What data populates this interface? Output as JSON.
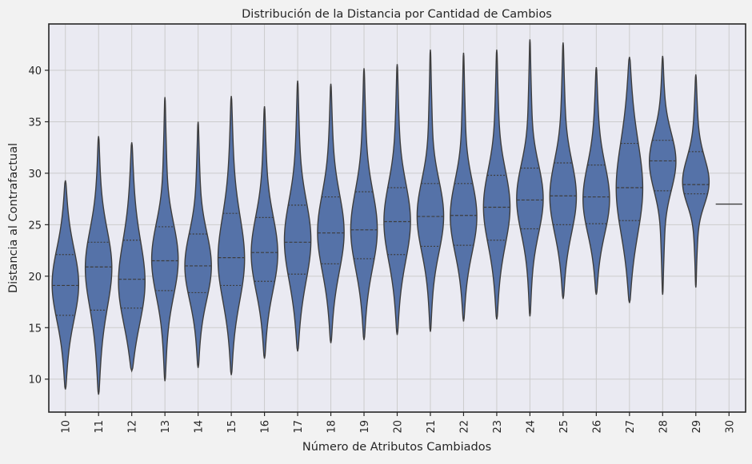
{
  "chart_data": {
    "type": "violin",
    "title": "Distribución de la Distancia por Cantidad de Cambios",
    "xlabel": "Número de Atributos Cambiados",
    "ylabel": "Distancia al Contrafactual",
    "ylim": [
      6.8,
      44.5
    ],
    "yticks": [
      10,
      15,
      20,
      25,
      30,
      35,
      40
    ],
    "grid": true,
    "inner": "quartile",
    "colors": {
      "violin": "#5572a8",
      "edge": "#3d3d3d",
      "grid": "#cccccc",
      "frame": "#262626",
      "background": "#eaeaf2"
    },
    "categories": [
      "10",
      "11",
      "12",
      "13",
      "14",
      "15",
      "16",
      "17",
      "18",
      "19",
      "20",
      "21",
      "22",
      "23",
      "24",
      "25",
      "26",
      "27",
      "28",
      "29",
      "30"
    ],
    "series": [
      {
        "category": "10",
        "min": 9.0,
        "q1": 16.2,
        "median": 19.1,
        "q3": 22.1,
        "max": 29.3,
        "mode": 19.5
      },
      {
        "category": "11",
        "min": 8.5,
        "q1": 16.7,
        "median": 20.9,
        "q3": 23.3,
        "max": 33.6,
        "mode": 21.0
      },
      {
        "category": "12",
        "min": 10.8,
        "q1": 16.9,
        "median": 19.7,
        "q3": 23.5,
        "max": 33.0,
        "mode": 18.0
      },
      {
        "category": "13",
        "min": 9.8,
        "q1": 18.6,
        "median": 21.5,
        "q3": 24.8,
        "max": 37.4,
        "mode": 21.5
      },
      {
        "category": "14",
        "min": 11.1,
        "q1": 18.4,
        "median": 21.0,
        "q3": 24.1,
        "max": 35.0,
        "mode": 20.5
      },
      {
        "category": "15",
        "min": 10.4,
        "q1": 19.1,
        "median": 21.8,
        "q3": 26.1,
        "max": 37.5,
        "mode": 20.5
      },
      {
        "category": "16",
        "min": 12.0,
        "q1": 19.5,
        "median": 22.3,
        "q3": 25.7,
        "max": 36.5,
        "mode": 21.5
      },
      {
        "category": "17",
        "min": 12.7,
        "q1": 20.2,
        "median": 23.3,
        "q3": 26.9,
        "max": 39.0,
        "mode": 23.5
      },
      {
        "category": "18",
        "min": 13.5,
        "q1": 21.2,
        "median": 24.2,
        "q3": 27.7,
        "max": 38.7,
        "mode": 24.0
      },
      {
        "category": "19",
        "min": 13.8,
        "q1": 21.7,
        "median": 24.5,
        "q3": 28.2,
        "max": 40.2,
        "mode": 24.0
      },
      {
        "category": "20",
        "min": 14.3,
        "q1": 22.1,
        "median": 25.3,
        "q3": 28.6,
        "max": 40.6,
        "mode": 25.0
      },
      {
        "category": "21",
        "min": 14.6,
        "q1": 22.9,
        "median": 25.8,
        "q3": 29.0,
        "max": 42.0,
        "mode": 25.5
      },
      {
        "category": "22",
        "min": 15.6,
        "q1": 23.0,
        "median": 25.9,
        "q3": 29.0,
        "max": 41.7,
        "mode": 25.0
      },
      {
        "category": "23",
        "min": 15.8,
        "q1": 23.5,
        "median": 26.7,
        "q3": 29.8,
        "max": 42.0,
        "mode": 26.5
      },
      {
        "category": "24",
        "min": 16.1,
        "q1": 24.6,
        "median": 27.4,
        "q3": 30.5,
        "max": 43.0,
        "mode": 27.5
      },
      {
        "category": "25",
        "min": 17.8,
        "q1": 25.0,
        "median": 27.8,
        "q3": 31.0,
        "max": 42.7,
        "mode": 27.0
      },
      {
        "category": "26",
        "min": 18.2,
        "q1": 25.1,
        "median": 27.7,
        "q3": 30.8,
        "max": 40.3,
        "mode": 26.5
      },
      {
        "category": "27",
        "min": 17.4,
        "q1": 25.4,
        "median": 28.6,
        "q3": 32.9,
        "max": 41.3,
        "mode": 28.0
      },
      {
        "category": "28",
        "min": 18.2,
        "q1": 28.3,
        "median": 31.2,
        "q3": 33.2,
        "max": 41.4,
        "mode": 31.5
      },
      {
        "category": "29",
        "min": 18.9,
        "q1": 28.0,
        "median": 28.9,
        "q3": 32.1,
        "max": 39.6,
        "mode": 29.0
      },
      {
        "category": "30",
        "min": 27.0,
        "q1": 27.0,
        "median": 27.0,
        "q3": 27.0,
        "max": 27.0,
        "mode": 27.0
      }
    ]
  }
}
